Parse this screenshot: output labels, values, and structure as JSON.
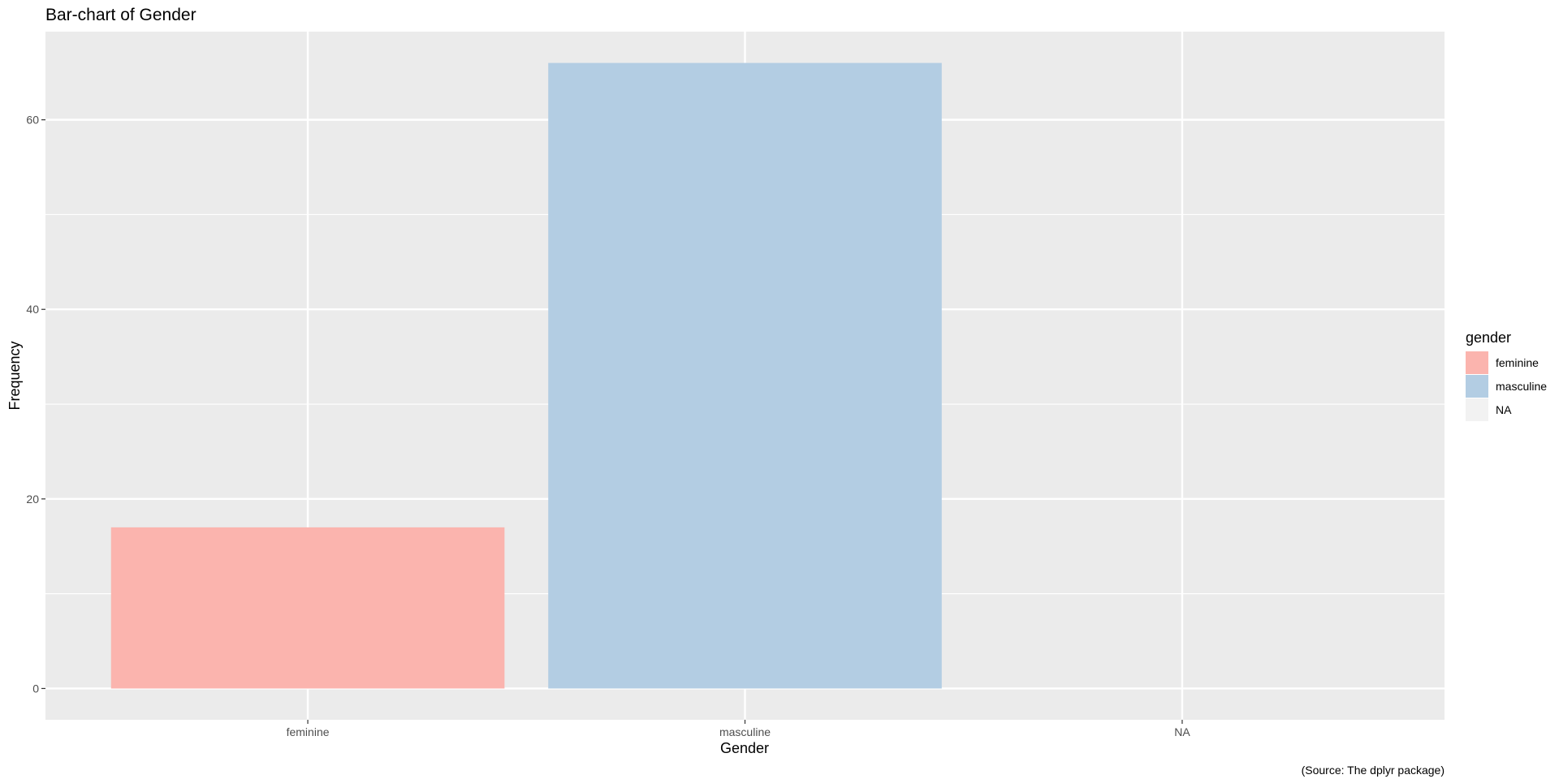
{
  "chart_data": {
    "type": "bar",
    "title": "Bar-chart of Gender",
    "xlabel": "Gender",
    "ylabel": "Frequency",
    "caption": "(Source: The dplyr package)",
    "categories": [
      "feminine",
      "masculine",
      "NA"
    ],
    "values": [
      17,
      66,
      0
    ],
    "ylim": [
      -3.3,
      69.3
    ],
    "yticks": [
      0,
      20,
      40,
      60
    ],
    "ytick_labels": [
      "0",
      "20",
      "40",
      "60"
    ],
    "grid": true,
    "legend": {
      "title": "gender",
      "position": "right",
      "entries": [
        {
          "label": "feminine",
          "color": "#FBB4AE"
        },
        {
          "label": "masculine",
          "color": "#B3CDE3"
        },
        {
          "label": "NA",
          "color": "#F2F2F2"
        }
      ]
    },
    "colors": {
      "panel_background": "#EBEBEB",
      "grid_line": "#FFFFFF",
      "bar_feminine": "#FBB4AE",
      "bar_masculine": "#B3CDE3",
      "bar_na": "#F2F2F2"
    }
  }
}
